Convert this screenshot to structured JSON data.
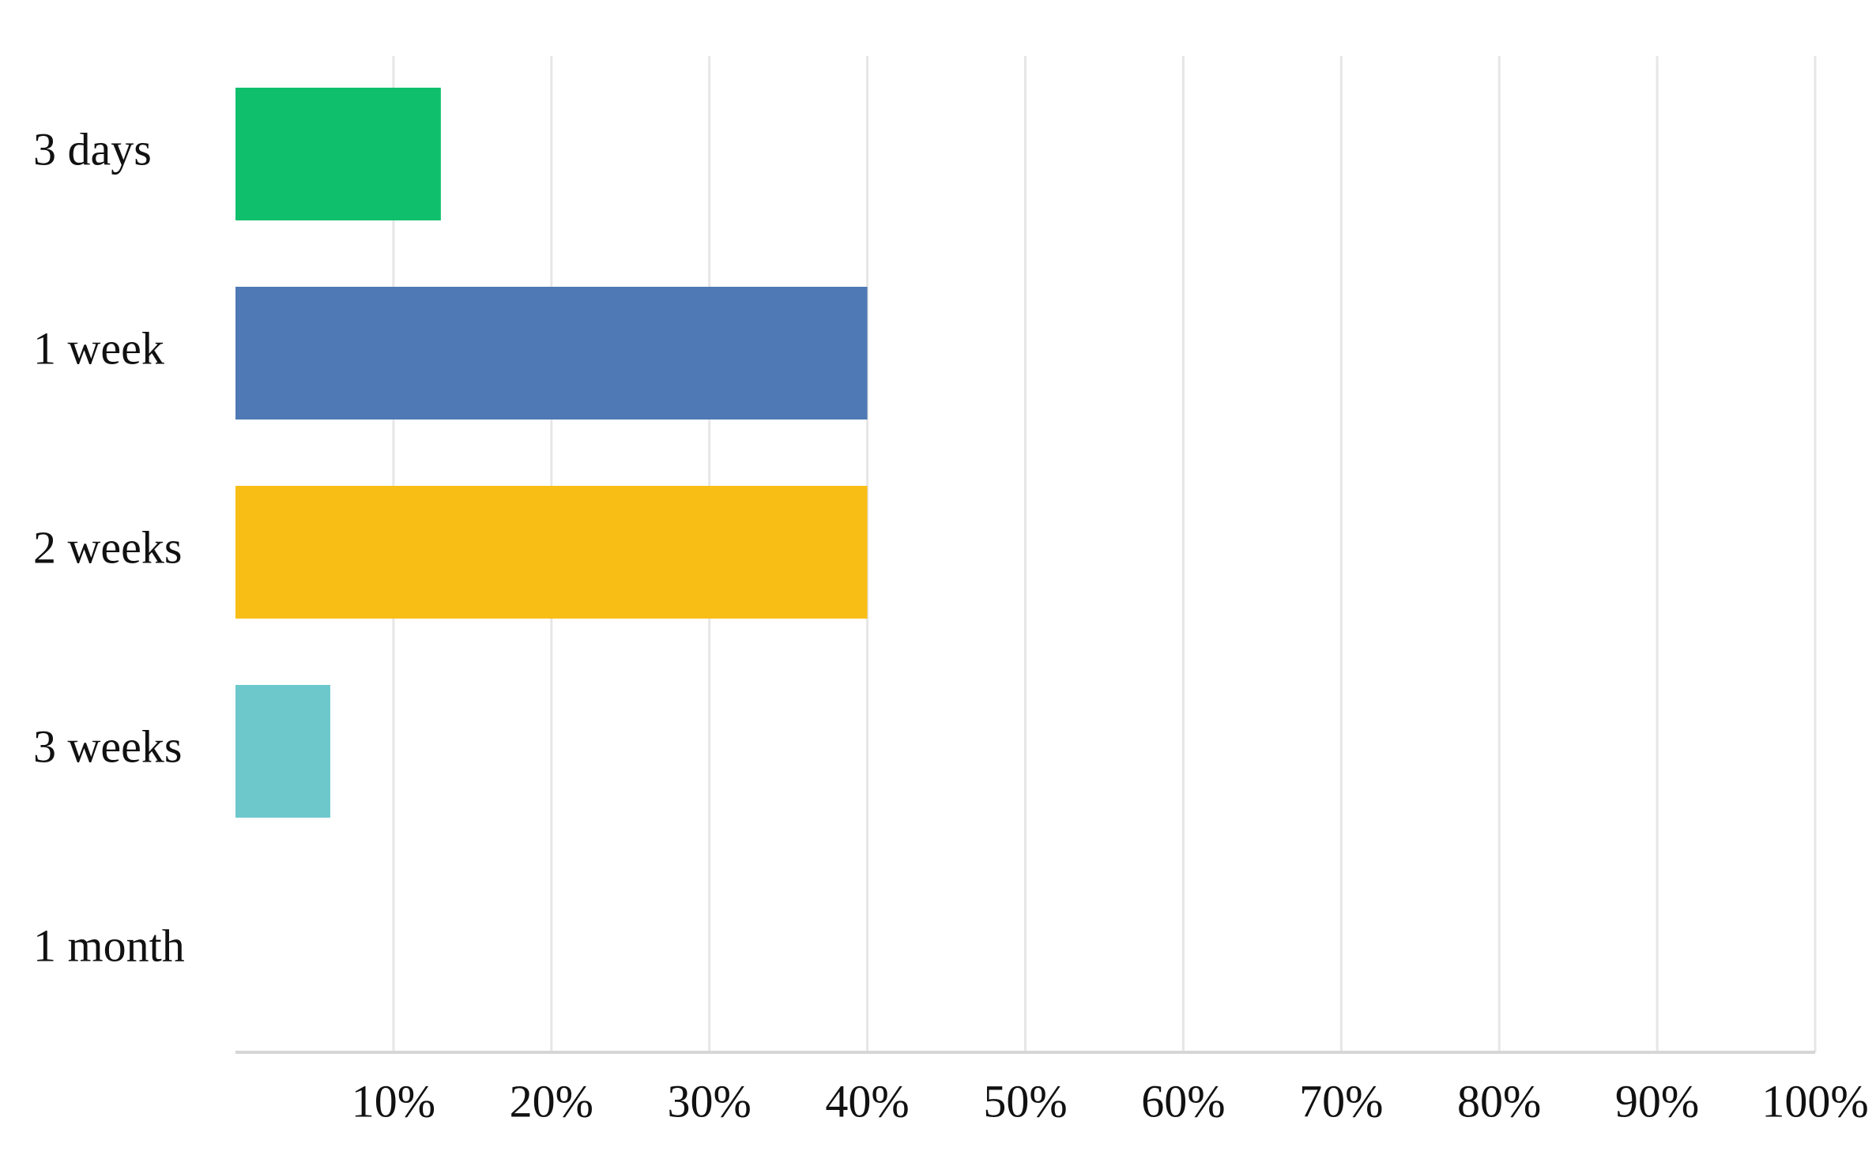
{
  "chart_data": {
    "type": "bar",
    "orientation": "horizontal",
    "categories": [
      "3 days",
      "1 week",
      "2 weeks",
      "3 weeks",
      "1 month"
    ],
    "values": [
      13,
      40,
      40,
      6,
      0
    ],
    "colors": [
      "#10bf6c",
      "#4e79b4",
      "#f8be16",
      "#6cc8cb",
      "#6cc8cb"
    ],
    "xlim": [
      0,
      100
    ],
    "xticks": [
      {
        "value": 10,
        "label": "10%"
      },
      {
        "value": 20,
        "label": "20%"
      },
      {
        "value": 30,
        "label": "30%"
      },
      {
        "value": 40,
        "label": "40%"
      },
      {
        "value": 50,
        "label": "50%"
      },
      {
        "value": 60,
        "label": "60%"
      },
      {
        "value": 70,
        "label": "70%"
      },
      {
        "value": 80,
        "label": "80%"
      },
      {
        "value": 90,
        "label": "90%"
      },
      {
        "value": 100,
        "label": "100%"
      }
    ],
    "grid": true
  }
}
